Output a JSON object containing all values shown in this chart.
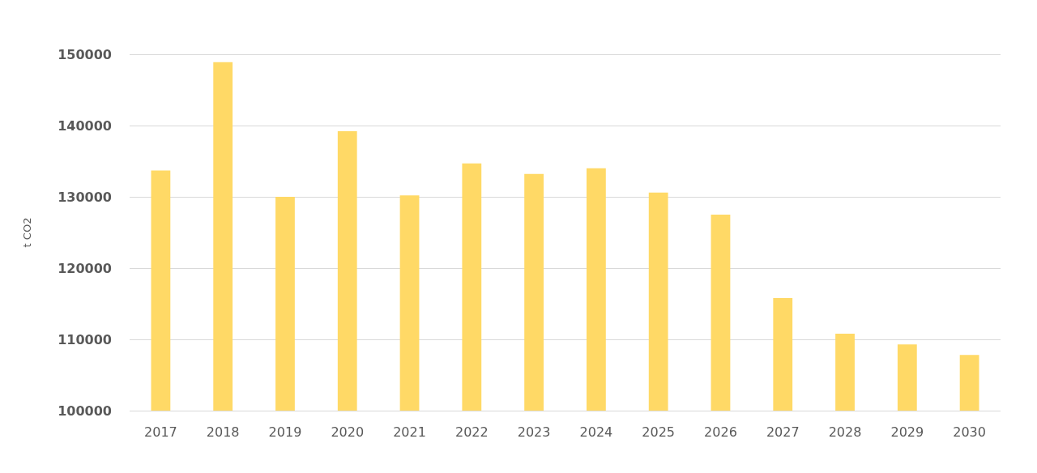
{
  "chart_data": {
    "type": "bar",
    "ylabel": "t CO2",
    "categories": [
      "2017",
      "2018",
      "2019",
      "2020",
      "2021",
      "2022",
      "2023",
      "2024",
      "2025",
      "2026",
      "2027",
      "2028",
      "2029",
      "2030"
    ],
    "values": [
      133700,
      148900,
      130000,
      139200,
      130200,
      134700,
      133200,
      134000,
      130600,
      127500,
      115800,
      110800,
      109300,
      107800
    ],
    "color": "#ffd966",
    "ylim": [
      100000,
      150000
    ],
    "yticks": [
      100000,
      110000,
      120000,
      130000,
      140000,
      150000
    ],
    "grid": "y"
  }
}
